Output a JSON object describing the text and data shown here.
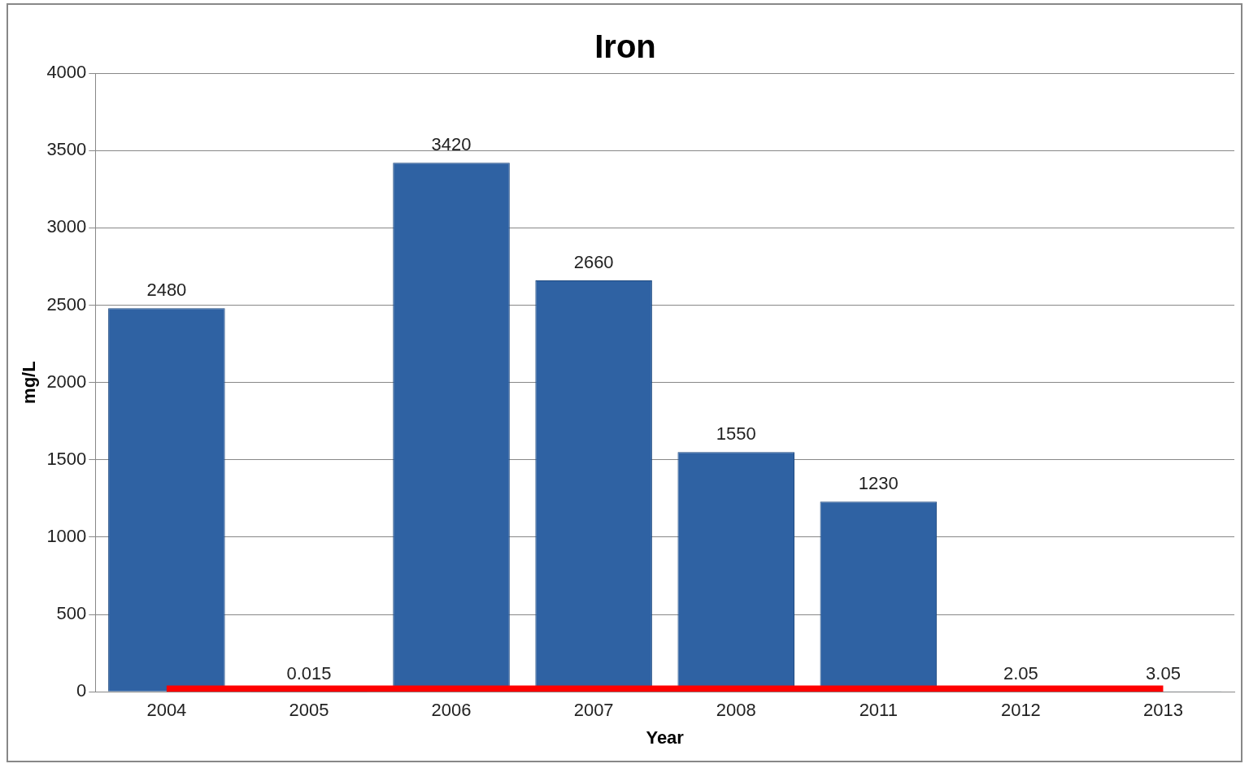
{
  "chart_data": {
    "type": "bar",
    "title": "Iron",
    "xlabel": "Year",
    "ylabel": "mg/L",
    "categories": [
      "2004",
      "2005",
      "2006",
      "2007",
      "2008",
      "2011",
      "2012",
      "2013"
    ],
    "series": [
      {
        "color": "#2f62a3",
        "values": [
          2480,
          0.015,
          3420,
          2660,
          1550,
          1230,
          2.05,
          3.05
        ],
        "value_labels": [
          "2480",
          "0.015",
          "3420",
          "2660",
          "1550",
          "1230",
          "2.05",
          "3.05"
        ]
      },
      {
        "type": "line",
        "color": "#ff0000",
        "values": [
          20,
          20,
          20,
          20,
          20,
          20,
          20,
          20
        ]
      }
    ],
    "ylim": [
      0,
      4000
    ],
    "yticks": [
      0,
      500,
      1000,
      1500,
      2000,
      2500,
      3000,
      3500,
      4000
    ],
    "grid": "y",
    "legend": false,
    "marker": "none"
  }
}
